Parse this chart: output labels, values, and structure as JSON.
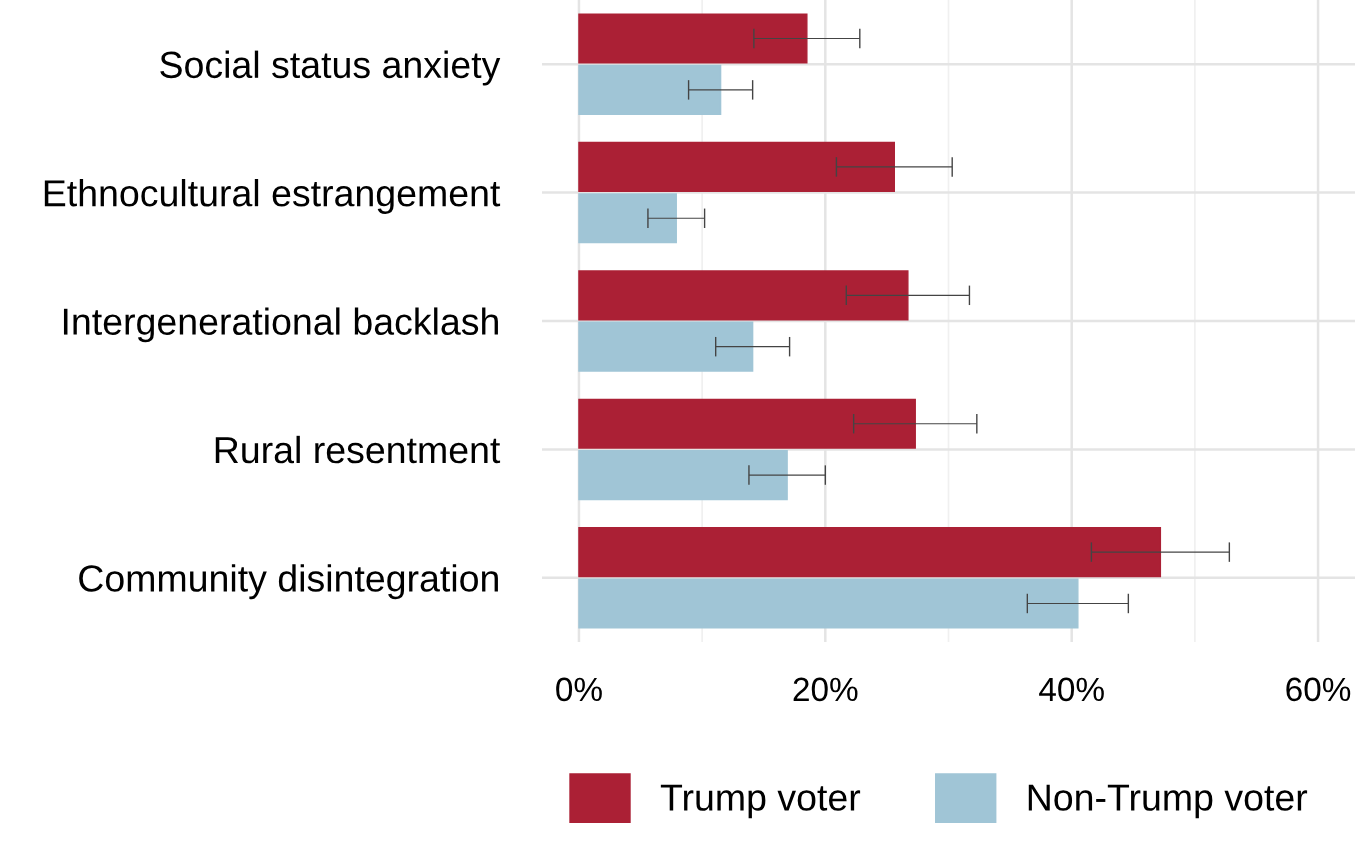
{
  "chart_data": {
    "type": "bar",
    "orientation": "horizontal",
    "categories": [
      "Social status anxiety",
      "Ethnocultural estrangement",
      "Intergenerational backlash",
      "Rural resentment",
      "Community disintegration"
    ],
    "series": [
      {
        "name": "Trump voter",
        "color": "#ab2035",
        "values": [
          18.5,
          25.6,
          26.7,
          27.3,
          47.2
        ],
        "errors": [
          4.3,
          4.7,
          5.0,
          5.0,
          5.6
        ]
      },
      {
        "name": "Non-Trump voter",
        "color": "#a0c5d6",
        "values": [
          11.5,
          7.9,
          14.1,
          16.9,
          40.5
        ],
        "errors": [
          2.6,
          2.3,
          3.0,
          3.1,
          4.1
        ]
      }
    ],
    "xlim": [
      -3,
      63
    ],
    "xticks": [
      {
        "value": 0,
        "label": "0%"
      },
      {
        "value": 20,
        "label": "20%"
      },
      {
        "value": 40,
        "label": "40%"
      },
      {
        "value": 60,
        "label": "60%"
      }
    ],
    "grid": true,
    "legend": "bottom right"
  }
}
